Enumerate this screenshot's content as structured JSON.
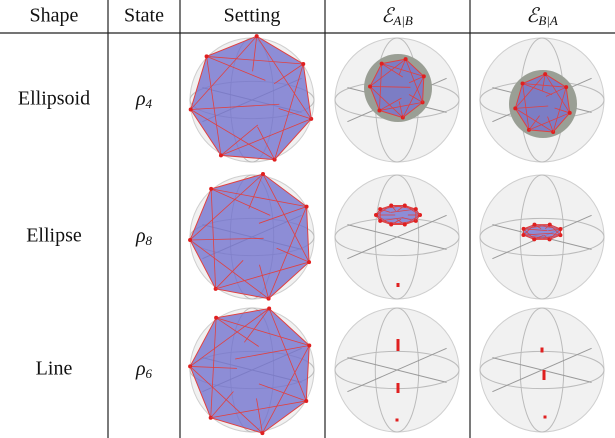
{
  "table": {
    "header": [
      "Shape",
      "State",
      "Setting",
      {
        "symbol": "ℰ",
        "subscript": "A|B"
      },
      {
        "symbol": "ℰ",
        "subscript": "B|A"
      }
    ],
    "rows": [
      [
        "Ellipsoid",
        {
          "symbol": "ρ",
          "subscript": "4"
        }
      ],
      [
        "Ellipse",
        {
          "symbol": "ρ",
          "subscript": "8"
        }
      ],
      [
        "Line",
        {
          "symbol": "ρ",
          "subscript": "6"
        }
      ]
    ]
  }
}
